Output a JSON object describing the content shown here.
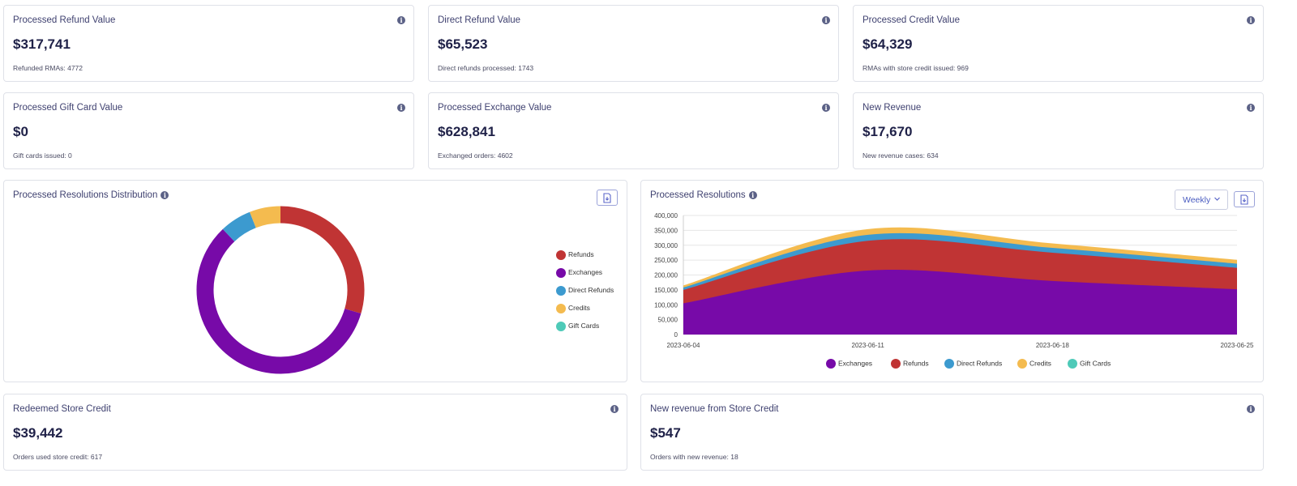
{
  "kpi_cards": [
    {
      "title": "Processed Refund Value",
      "value": "$317,741",
      "sub": "Refunded RMAs: 4772"
    },
    {
      "title": "Direct Refund Value",
      "value": "$65,523",
      "sub": "Direct refunds processed: 1743"
    },
    {
      "title": "Processed Credit Value",
      "value": "$64,329",
      "sub": "RMAs with store credit issued: 969"
    },
    {
      "title": "Processed Gift Card Value",
      "value": "$0",
      "sub": "Gift cards issued: 0"
    },
    {
      "title": "Processed Exchange Value",
      "value": "$628,841",
      "sub": "Exchanged orders: 4602"
    },
    {
      "title": "New Revenue",
      "value": "$17,670",
      "sub": "New revenue cases: 634"
    }
  ],
  "bottom_cards": [
    {
      "title": "Redeemed Store Credit",
      "value": "$39,442",
      "sub": "Orders used store credit: 617"
    },
    {
      "title": "New revenue from Store Credit",
      "value": "$547",
      "sub": "Orders with new revenue: 18"
    }
  ],
  "info_glyph": "i",
  "icons": {
    "info": "info-icon",
    "export": "export-icon",
    "chevron": "chevron-down-icon"
  },
  "colors": {
    "refunds": "#c03434",
    "exchanges": "#770aa8",
    "direct_refunds": "#3c9acf",
    "credits": "#f4bb4f",
    "gift_cards": "#4ecab8"
  },
  "donut_card": {
    "title": "Processed Resolutions Distribution"
  },
  "area_card": {
    "title": "Processed Resolutions",
    "period": "Weekly"
  },
  "chart_data": [
    {
      "type": "pie",
      "variant": "donut",
      "legend_position": "right",
      "labels": [
        "Refunds",
        "Exchanges",
        "Direct Refunds",
        "Credits",
        "Gift Cards"
      ],
      "values": [
        317741,
        628841,
        65523,
        64329,
        0
      ]
    },
    {
      "type": "area",
      "stacked": true,
      "legend_position": "bottom",
      "x": [
        "2023-06-04",
        "2023-06-11",
        "2023-06-18",
        "2023-06-25"
      ],
      "ylim": [
        0,
        400000
      ],
      "yticks": [
        "0",
        "50,000",
        "100,000",
        "150,000",
        "200,000",
        "250,000",
        "300,000",
        "350,000",
        "400,000"
      ],
      "grid": true,
      "series": [
        {
          "name": "Exchanges",
          "values": [
            105000,
            215000,
            180000,
            152000
          ]
        },
        {
          "name": "Refunds",
          "values": [
            45000,
            100000,
            95000,
            72000
          ]
        },
        {
          "name": "Direct Refunds",
          "values": [
            8000,
            20000,
            16000,
            14000
          ]
        },
        {
          "name": "Credits",
          "values": [
            7000,
            19000,
            15000,
            13000
          ]
        },
        {
          "name": "Gift Cards",
          "values": [
            0,
            0,
            0,
            0
          ]
        }
      ]
    }
  ]
}
